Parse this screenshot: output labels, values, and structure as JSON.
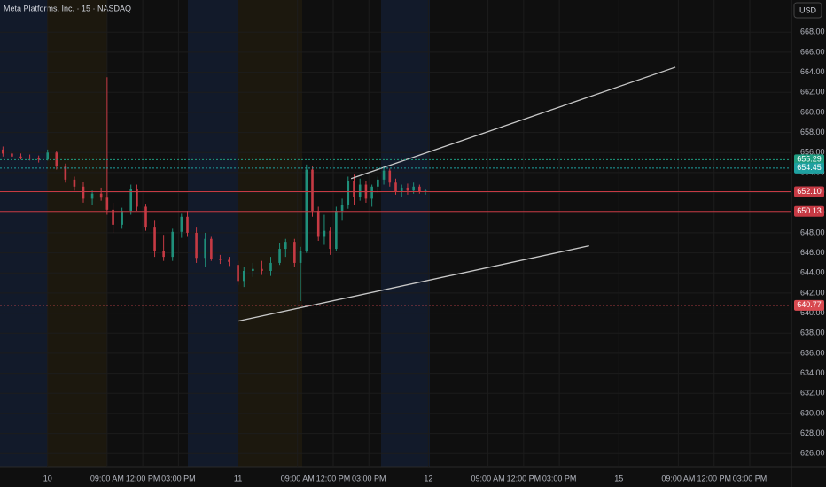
{
  "chart_data": {
    "type": "candlestick",
    "title": "Meta Platforms, Inc. · 15 · NASDAQ",
    "currency": "USD",
    "up_color": "#1f8f7a",
    "down_color": "#c63a44",
    "grid": true,
    "x": [
      1,
      4,
      7,
      10,
      13,
      16,
      19,
      22,
      25,
      28,
      31,
      34,
      36,
      38,
      41,
      44,
      46,
      49,
      52,
      55,
      58,
      61,
      63,
      66,
      69,
      71,
      74,
      77,
      80,
      82,
      85,
      88,
      91,
      94,
      96,
      99,
      101,
      103,
      105,
      107,
      109,
      111,
      113,
      115,
      117,
      119,
      121,
      123,
      125,
      127,
      129,
      131,
      133,
      135,
      137,
      139,
      141,
      143
    ],
    "open": [
      656.3,
      655.9,
      655.6,
      655.5,
      655.4,
      655.3,
      656.0,
      654.6,
      653.3,
      652.6,
      651.4,
      651.9,
      651.5,
      650.3,
      648.8,
      650.2,
      652.4,
      650.6,
      648.6,
      646.2,
      645.6,
      648.1,
      649.6,
      648.0,
      645.5,
      647.4,
      645.4,
      645.3,
      644.8,
      643.2,
      644.2,
      644.4,
      644.2,
      645.0,
      646.4,
      647.1,
      645.0,
      646.2,
      654.3,
      650.2,
      647.6,
      648.2,
      646.4,
      650.2,
      650.8,
      653.2,
      651.6,
      652.8,
      651.4,
      652.6,
      653.3,
      654.2,
      653.0,
      652.1,
      652.5,
      652.2,
      652.6,
      652.1
    ],
    "high": [
      656.6,
      656.1,
      655.9,
      655.8,
      655.7,
      656.3,
      656.2,
      654.9,
      653.6,
      653.1,
      652.2,
      652.5,
      663.5,
      651.0,
      650.5,
      652.8,
      652.8,
      650.9,
      649.2,
      647.8,
      648.4,
      649.9,
      650.2,
      648.6,
      648.0,
      647.6,
      645.8,
      645.6,
      645.2,
      644.6,
      645.0,
      645.2,
      645.6,
      647.0,
      647.4,
      647.4,
      646.6,
      654.8,
      654.6,
      650.6,
      649.8,
      648.6,
      650.6,
      651.4,
      653.6,
      653.8,
      653.4,
      653.2,
      652.8,
      653.6,
      654.6,
      654.4,
      653.4,
      652.8,
      652.9,
      653.0,
      652.8,
      652.4
    ],
    "low": [
      655.6,
      655.4,
      655.3,
      655.2,
      655.0,
      655.2,
      654.3,
      653.0,
      652.2,
      651.0,
      650.8,
      651.2,
      649.8,
      648.0,
      648.4,
      649.8,
      650.2,
      648.2,
      645.6,
      645.2,
      645.2,
      647.5,
      647.6,
      645.0,
      644.6,
      645.2,
      644.9,
      644.7,
      642.8,
      642.6,
      643.6,
      643.8,
      643.7,
      644.8,
      645.6,
      644.6,
      641.2,
      646.0,
      649.6,
      647.2,
      646.8,
      645.8,
      646.2,
      649.2,
      650.4,
      650.8,
      651.2,
      651.0,
      650.6,
      652.0,
      652.8,
      652.6,
      651.8,
      651.6,
      651.8,
      651.9,
      651.9,
      651.8
    ],
    "close": [
      655.9,
      655.6,
      655.5,
      655.4,
      655.3,
      656.0,
      654.6,
      653.3,
      652.6,
      651.4,
      651.9,
      651.5,
      650.3,
      648.8,
      650.2,
      652.4,
      650.6,
      648.6,
      646.2,
      645.6,
      648.1,
      649.6,
      648.0,
      645.5,
      647.4,
      645.4,
      645.3,
      645.1,
      643.2,
      644.2,
      644.4,
      644.2,
      645.0,
      646.4,
      647.1,
      645.0,
      646.2,
      654.3,
      650.2,
      647.6,
      648.2,
      646.4,
      650.2,
      650.8,
      653.2,
      651.6,
      652.8,
      651.4,
      652.6,
      653.3,
      654.2,
      653.0,
      652.1,
      652.5,
      652.2,
      652.6,
      652.1,
      652.2
    ],
    "xlim": [
      0,
      266
    ],
    "ylim": [
      624.7,
      671.2
    ],
    "xticks": [
      {
        "value": 16,
        "label": "10"
      },
      {
        "value": 36,
        "label": "09:00 AM"
      },
      {
        "value": 48,
        "label": "12:00 PM"
      },
      {
        "value": 60,
        "label": "03:00 PM"
      },
      {
        "value": 80,
        "label": "11"
      },
      {
        "value": 100,
        "label": "09:00 AM"
      },
      {
        "value": 112,
        "label": "12:00 PM"
      },
      {
        "value": 124,
        "label": "03:00 PM"
      },
      {
        "value": 144,
        "label": "12"
      },
      {
        "value": 164,
        "label": "09:00 AM"
      },
      {
        "value": 176,
        "label": "12:00 PM"
      },
      {
        "value": 188,
        "label": "03:00 PM"
      },
      {
        "value": 208,
        "label": "15"
      },
      {
        "value": 228,
        "label": "09:00 AM"
      },
      {
        "value": 240,
        "label": "12:00 PM"
      },
      {
        "value": 252,
        "label": "03:00 PM"
      }
    ],
    "yticks": [
      {
        "value": 626,
        "label": "626.00"
      },
      {
        "value": 628,
        "label": "628.00"
      },
      {
        "value": 630,
        "label": "630.00"
      },
      {
        "value": 632,
        "label": "632.00"
      },
      {
        "value": 634,
        "label": "634.00"
      },
      {
        "value": 636,
        "label": "636.00"
      },
      {
        "value": 638,
        "label": "638.00"
      },
      {
        "value": 640,
        "label": "640.00"
      },
      {
        "value": 642,
        "label": "642.00"
      },
      {
        "value": 644,
        "label": "644.00"
      },
      {
        "value": 646,
        "label": "646.00"
      },
      {
        "value": 648,
        "label": "648.00"
      },
      {
        "value": 650,
        "label": "650.00"
      },
      {
        "value": 652,
        "label": "652.00"
      },
      {
        "value": 654,
        "label": "654.00"
      },
      {
        "value": 656,
        "label": "656.00"
      },
      {
        "value": 658,
        "label": "658.00"
      },
      {
        "value": 660,
        "label": "660.00"
      },
      {
        "value": 662,
        "label": "662.00"
      },
      {
        "value": 664,
        "label": "664.00"
      },
      {
        "value": 666,
        "label": "666.00"
      },
      {
        "value": 668,
        "label": "668.00"
      }
    ],
    "price_lines": [
      {
        "value": 655.29,
        "label": "655.29",
        "color": "#1f9c80",
        "style": "dotted"
      },
      {
        "value": 654.45,
        "label": "654.45",
        "color": "#1fa0a0",
        "style": "dotted"
      },
      {
        "value": 652.1,
        "label": "652.10",
        "color": "#c63a44",
        "style": "solid"
      },
      {
        "value": 650.13,
        "label": "650.13",
        "color": "#c63a44",
        "style": "solid"
      },
      {
        "value": 640.77,
        "label": "640.77",
        "color": "#d84a50",
        "style": "dotted"
      }
    ],
    "trendlines": [
      {
        "x": [
          118,
          227
        ],
        "y": [
          653.4,
          664.5
        ]
      },
      {
        "x": [
          80,
          198
        ],
        "y": [
          639.2,
          646.7
        ]
      }
    ]
  }
}
